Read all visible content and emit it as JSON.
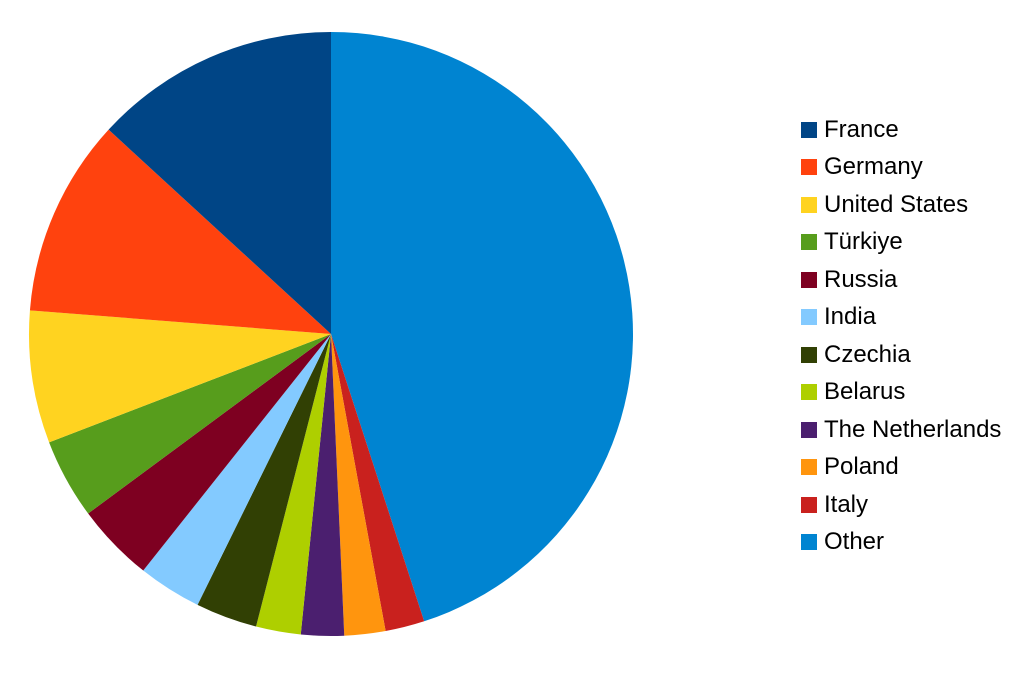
{
  "chart_data": {
    "type": "pie",
    "title": "",
    "legend_position": "right",
    "slices": [
      {
        "label": "Other",
        "value": 45.1,
        "color": "#0084D1"
      },
      {
        "label": "Italy",
        "value": 2.1,
        "color": "#C9211E"
      },
      {
        "label": "Poland",
        "value": 2.2,
        "color": "#FF950E"
      },
      {
        "label": "The Netherlands",
        "value": 2.3,
        "color": "#4B1F6F"
      },
      {
        "label": "Belarus",
        "value": 2.4,
        "color": "#AECF00"
      },
      {
        "label": "Czechia",
        "value": 3.3,
        "color": "#314004"
      },
      {
        "label": "India",
        "value": 3.4,
        "color": "#83CAFF"
      },
      {
        "label": "Russia",
        "value": 4.2,
        "color": "#7E0021"
      },
      {
        "label": "Türkiye",
        "value": 4.3,
        "color": "#579D1C"
      },
      {
        "label": "United States",
        "value": 7.1,
        "color": "#FFD320"
      },
      {
        "label": "Germany",
        "value": 10.6,
        "color": "#FF420E"
      },
      {
        "label": "France",
        "value": 13.2,
        "color": "#004586"
      }
    ]
  },
  "legend": [
    {
      "label": "France",
      "color": "#004586"
    },
    {
      "label": "Germany",
      "color": "#FF420E"
    },
    {
      "label": "United States",
      "color": "#FFD320"
    },
    {
      "label": "Türkiye",
      "color": "#579D1C"
    },
    {
      "label": "Russia",
      "color": "#7E0021"
    },
    {
      "label": "India",
      "color": "#83CAFF"
    },
    {
      "label": "Czechia",
      "color": "#314004"
    },
    {
      "label": "Belarus",
      "color": "#AECF00"
    },
    {
      "label": "The Netherlands",
      "color": "#4B1F6F"
    },
    {
      "label": "Poland",
      "color": "#FF950E"
    },
    {
      "label": "Italy",
      "color": "#C9211E"
    },
    {
      "label": "Other",
      "color": "#0084D1"
    }
  ]
}
